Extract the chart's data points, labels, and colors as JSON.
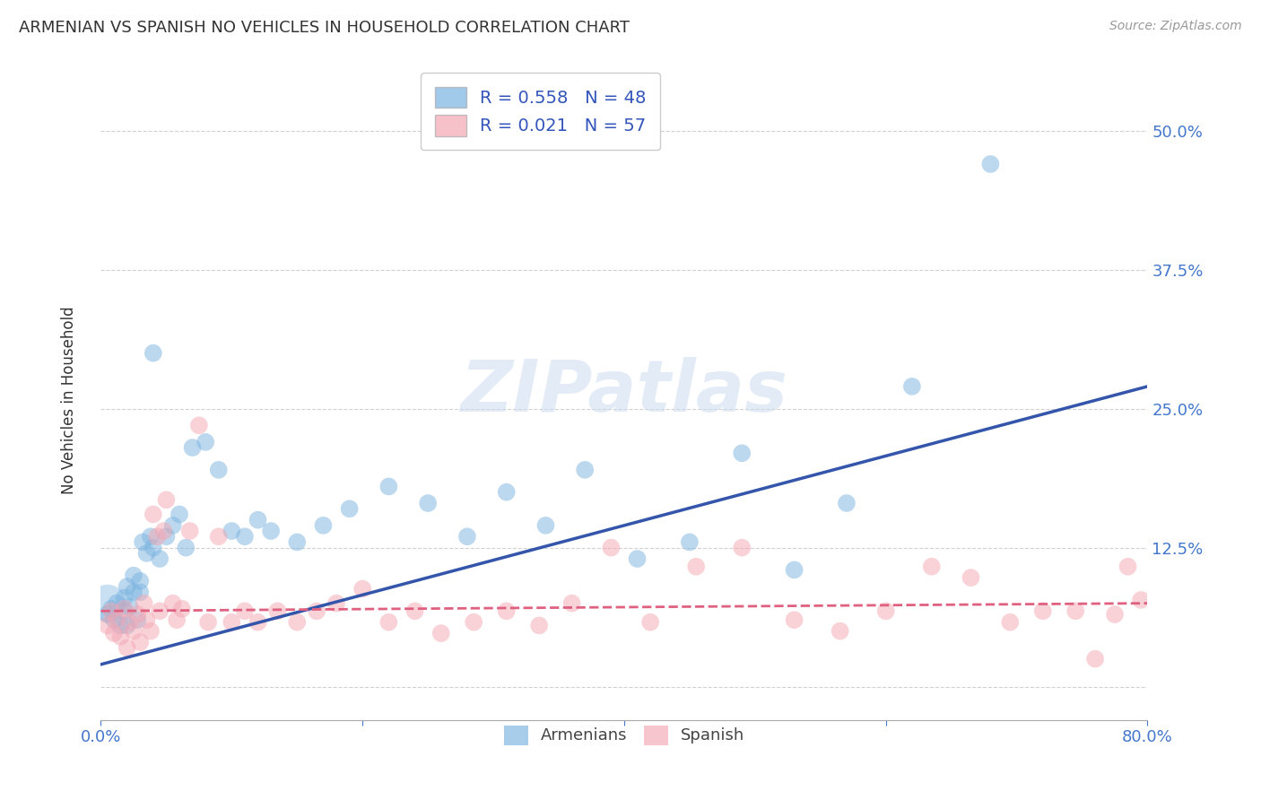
{
  "title": "ARMENIAN VS SPANISH NO VEHICLES IN HOUSEHOLD CORRELATION CHART",
  "source": "Source: ZipAtlas.com",
  "ylabel": "No Vehicles in Household",
  "xlim": [
    0.0,
    0.8
  ],
  "ylim": [
    -0.03,
    0.56
  ],
  "ytick_positions": [
    0.0,
    0.125,
    0.25,
    0.375,
    0.5
  ],
  "ytick_labels": [
    "",
    "12.5%",
    "25.0%",
    "37.5%",
    "50.0%"
  ],
  "grid_color": "#cccccc",
  "background_color": "#ffffff",
  "watermark": "ZIPatlas",
  "armenian_color": "#7ab3e0",
  "spanish_color": "#f4a7b3",
  "armenian_line_color": "#3355aa",
  "spanish_line_color": "#e06080",
  "armenian_R": 0.558,
  "armenian_N": 48,
  "spanish_R": 0.021,
  "spanish_N": 57,
  "armenian_line_x0": 0.0,
  "armenian_line_y0": 0.02,
  "armenian_line_x1": 0.8,
  "armenian_line_y1": 0.27,
  "spanish_line_x0": 0.0,
  "spanish_line_y0": 0.068,
  "spanish_line_x1": 0.8,
  "spanish_line_y1": 0.075,
  "armenian_x": [
    0.005,
    0.008,
    0.01,
    0.012,
    0.015,
    0.018,
    0.018,
    0.02,
    0.02,
    0.022,
    0.025,
    0.025,
    0.028,
    0.03,
    0.03,
    0.032,
    0.035,
    0.038,
    0.04,
    0.04,
    0.045,
    0.05,
    0.055,
    0.06,
    0.065,
    0.07,
    0.08,
    0.09,
    0.1,
    0.11,
    0.12,
    0.13,
    0.15,
    0.17,
    0.19,
    0.22,
    0.25,
    0.28,
    0.31,
    0.34,
    0.37,
    0.41,
    0.45,
    0.49,
    0.53,
    0.57,
    0.62,
    0.68
  ],
  "armenian_y": [
    0.065,
    0.07,
    0.06,
    0.075,
    0.055,
    0.068,
    0.08,
    0.055,
    0.09,
    0.072,
    0.085,
    0.1,
    0.06,
    0.095,
    0.085,
    0.13,
    0.12,
    0.135,
    0.125,
    0.3,
    0.115,
    0.135,
    0.145,
    0.155,
    0.125,
    0.215,
    0.22,
    0.195,
    0.14,
    0.135,
    0.15,
    0.14,
    0.13,
    0.145,
    0.16,
    0.18,
    0.165,
    0.135,
    0.175,
    0.145,
    0.195,
    0.115,
    0.13,
    0.21,
    0.105,
    0.165,
    0.27,
    0.47
  ],
  "armenian_sizes": [
    200,
    200,
    200,
    200,
    200,
    200,
    200,
    200,
    200,
    200,
    200,
    200,
    200,
    200,
    200,
    200,
    200,
    200,
    200,
    200,
    200,
    200,
    200,
    200,
    200,
    200,
    200,
    200,
    200,
    200,
    200,
    200,
    200,
    200,
    200,
    200,
    200,
    200,
    200,
    200,
    200,
    200,
    200,
    200,
    200,
    200,
    200,
    200
  ],
  "armenian_large_x": [
    0.005
  ],
  "armenian_large_y": [
    0.075
  ],
  "armenian_large_size": [
    900
  ],
  "spanish_x": [
    0.005,
    0.008,
    0.01,
    0.012,
    0.015,
    0.018,
    0.02,
    0.022,
    0.025,
    0.028,
    0.03,
    0.033,
    0.035,
    0.038,
    0.04,
    0.043,
    0.045,
    0.048,
    0.05,
    0.055,
    0.058,
    0.062,
    0.068,
    0.075,
    0.082,
    0.09,
    0.1,
    0.11,
    0.12,
    0.135,
    0.15,
    0.165,
    0.18,
    0.2,
    0.22,
    0.24,
    0.26,
    0.285,
    0.31,
    0.335,
    0.36,
    0.39,
    0.42,
    0.455,
    0.49,
    0.53,
    0.565,
    0.6,
    0.635,
    0.665,
    0.695,
    0.72,
    0.745,
    0.76,
    0.775,
    0.785,
    0.795
  ],
  "spanish_y": [
    0.055,
    0.068,
    0.048,
    0.06,
    0.045,
    0.07,
    0.035,
    0.058,
    0.05,
    0.065,
    0.04,
    0.075,
    0.06,
    0.05,
    0.155,
    0.135,
    0.068,
    0.14,
    0.168,
    0.075,
    0.06,
    0.07,
    0.14,
    0.235,
    0.058,
    0.135,
    0.058,
    0.068,
    0.058,
    0.068,
    0.058,
    0.068,
    0.075,
    0.088,
    0.058,
    0.068,
    0.048,
    0.058,
    0.068,
    0.055,
    0.075,
    0.125,
    0.058,
    0.108,
    0.125,
    0.06,
    0.05,
    0.068,
    0.108,
    0.098,
    0.058,
    0.068,
    0.068,
    0.025,
    0.065,
    0.108,
    0.078
  ]
}
